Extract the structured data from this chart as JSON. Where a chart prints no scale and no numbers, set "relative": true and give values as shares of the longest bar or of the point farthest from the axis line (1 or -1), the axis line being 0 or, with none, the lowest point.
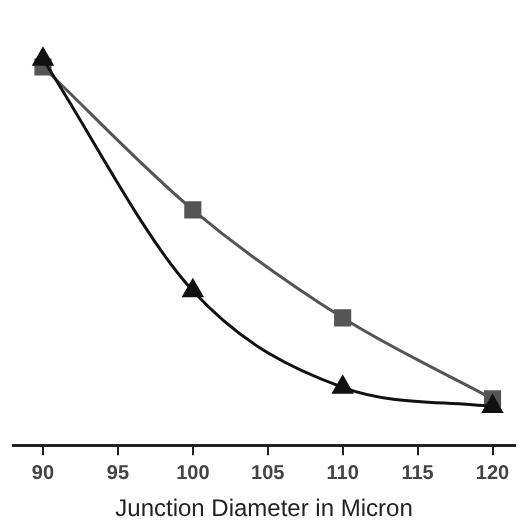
{
  "chart_data": {
    "type": "line",
    "xlabel": "Junction Diameter in Micron",
    "relative": true,
    "x": [
      90,
      100,
      110,
      120
    ],
    "xlim": [
      88,
      121.5
    ],
    "xticks": [
      90,
      95,
      100,
      105,
      110,
      115,
      120
    ],
    "grid": false,
    "legend": false,
    "series": [
      {
        "color": "#555555",
        "marker": "square",
        "values": [
          0.98,
          0.61,
          0.33,
          0.12
        ]
      },
      {
        "color": "#111111",
        "marker": "triangle",
        "values": [
          1,
          0.4,
          0.15,
          0.1
        ]
      }
    ]
  }
}
